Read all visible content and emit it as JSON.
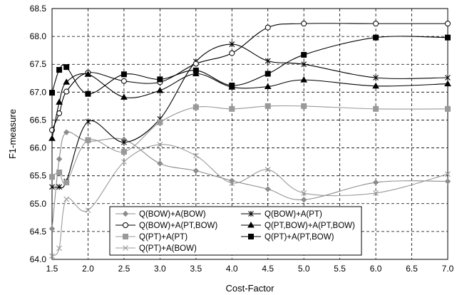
{
  "chart_data": {
    "type": "line",
    "title": "",
    "xlabel": "Cost-Factor",
    "ylabel": "F1-measure",
    "xlim": [
      1.5,
      7.0
    ],
    "ylim": [
      64.0,
      68.5
    ],
    "x_ticks": [
      "1.5",
      "2.0",
      "2.5",
      "3.0",
      "3.5",
      "4.0",
      "4.5",
      "5.0",
      "5.5",
      "6.0",
      "6.5",
      "7.0"
    ],
    "y_ticks": [
      "64.0",
      "64.5",
      "65.0",
      "65.5",
      "66.0",
      "66.5",
      "67.0",
      "67.5",
      "68.0",
      "68.5"
    ],
    "grid": "dashed",
    "legend_position": "bottom-left",
    "x": [
      1.5,
      1.6,
      1.7,
      2.0,
      2.5,
      3.0,
      3.5,
      4.0,
      4.5,
      5.0,
      6.0,
      7.0
    ],
    "series": [
      {
        "name": "Q(BOW)+A(BOW)",
        "marker": "diamond",
        "color": "#8c8c8c",
        "values": [
          64.55,
          65.8,
          66.28,
          66.12,
          66.15,
          65.72,
          65.59,
          65.41,
          65.26,
          65.07,
          65.38,
          65.4
        ]
      },
      {
        "name": "Q(BOW)+A(PT)",
        "marker": "asterisk",
        "color": "#000000",
        "values": [
          65.3,
          65.3,
          65.4,
          66.47,
          66.1,
          66.52,
          67.55,
          67.86,
          67.56,
          67.5,
          67.26,
          67.26
        ]
      },
      {
        "name": "Q(BOW)+A(PT,BOW)",
        "marker": "open-circle",
        "color": "#000000",
        "values": [
          66.32,
          66.62,
          67.01,
          67.35,
          67.2,
          67.18,
          67.51,
          67.7,
          68.16,
          68.23,
          68.23,
          68.23
        ]
      },
      {
        "name": "Q(PT,BOW)+A(PT,BOW)",
        "marker": "triangle",
        "color": "#000000",
        "values": [
          66.17,
          66.82,
          67.18,
          67.32,
          66.91,
          67.03,
          67.33,
          67.09,
          67.1,
          67.22,
          67.11,
          67.15
        ]
      },
      {
        "name": "Q(PT)+A(PT)",
        "marker": "square",
        "color": "#999999",
        "values": [
          65.48,
          65.56,
          65.38,
          66.14,
          65.93,
          66.46,
          66.73,
          66.7,
          66.75,
          66.75,
          66.7,
          66.7
        ]
      },
      {
        "name": "Q(PT)+A(PT,BOW)",
        "marker": "filled-square",
        "color": "#000000",
        "values": [
          66.99,
          67.4,
          67.45,
          66.97,
          67.32,
          67.23,
          67.39,
          67.12,
          67.33,
          67.67,
          67.98,
          67.98
        ]
      },
      {
        "name": "Q(PT)+A(BOW)",
        "marker": "x",
        "color": "#9a9a9a",
        "values": [
          64.06,
          64.2,
          65.08,
          64.88,
          65.75,
          66.06,
          65.86,
          65.37,
          65.61,
          65.19,
          65.19,
          65.53
        ]
      }
    ]
  }
}
